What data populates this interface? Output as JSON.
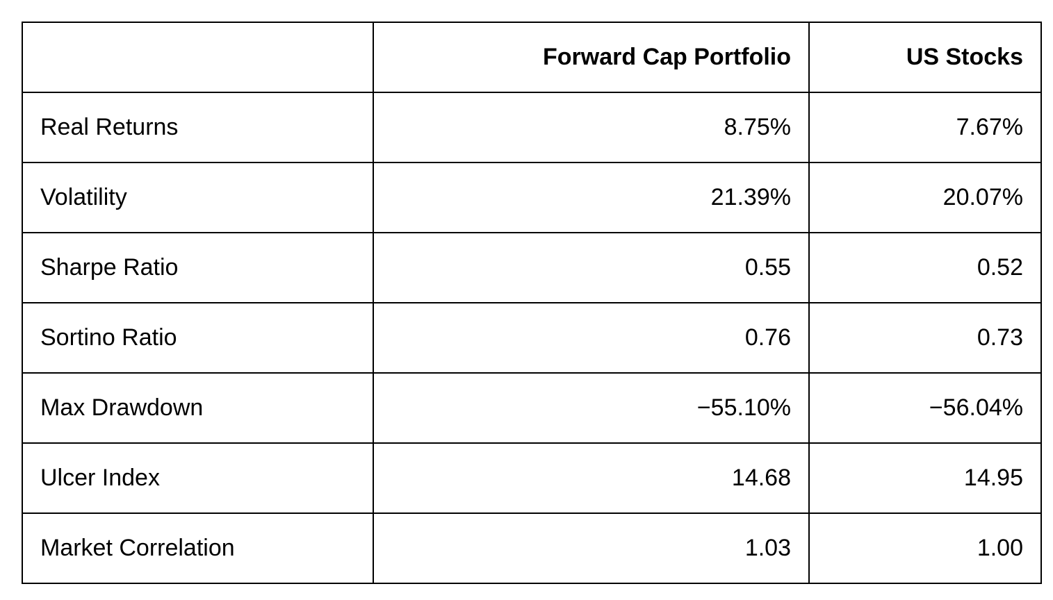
{
  "table": {
    "header": {
      "metric": "",
      "forward_cap": "Forward Cap Portfolio",
      "us_stocks": "US Stocks"
    },
    "rows": [
      {
        "label": "Real Returns",
        "forward_cap": "8.75%",
        "us_stocks": "7.67%"
      },
      {
        "label": "Volatility",
        "forward_cap": "21.39%",
        "us_stocks": "20.07%"
      },
      {
        "label": "Sharpe Ratio",
        "forward_cap": "0.55",
        "us_stocks": "0.52"
      },
      {
        "label": "Sortino Ratio",
        "forward_cap": "0.76",
        "us_stocks": "0.73"
      },
      {
        "label": "Max Drawdown",
        "forward_cap": "−55.10%",
        "us_stocks": "−56.04%"
      },
      {
        "label": "Ulcer Index",
        "forward_cap": "14.68",
        "us_stocks": "14.95"
      },
      {
        "label": "Market Correlation",
        "forward_cap": "1.03",
        "us_stocks": "1.00"
      }
    ],
    "colors": {
      "border": "#000000",
      "text": "#000000",
      "background": "#ffffff"
    }
  },
  "chart_data": {
    "type": "table",
    "title": "",
    "categories": [
      "Real Returns",
      "Volatility",
      "Sharpe Ratio",
      "Sortino Ratio",
      "Max Drawdown",
      "Ulcer Index",
      "Market Correlation"
    ],
    "series": [
      {
        "name": "Forward Cap Portfolio",
        "values": [
          8.75,
          21.39,
          0.55,
          0.76,
          -55.1,
          14.68,
          1.03
        ]
      },
      {
        "name": "US Stocks",
        "values": [
          7.67,
          20.07,
          0.52,
          0.73,
          -56.04,
          14.95,
          1.0
        ]
      }
    ],
    "value_units": [
      "percent",
      "percent",
      "ratio",
      "ratio",
      "percent",
      "index",
      "ratio"
    ],
    "layout": {
      "grid": "full-borders",
      "header_style": "bold-right-aligned",
      "label_alignment": "left",
      "value_alignment": "right"
    }
  }
}
